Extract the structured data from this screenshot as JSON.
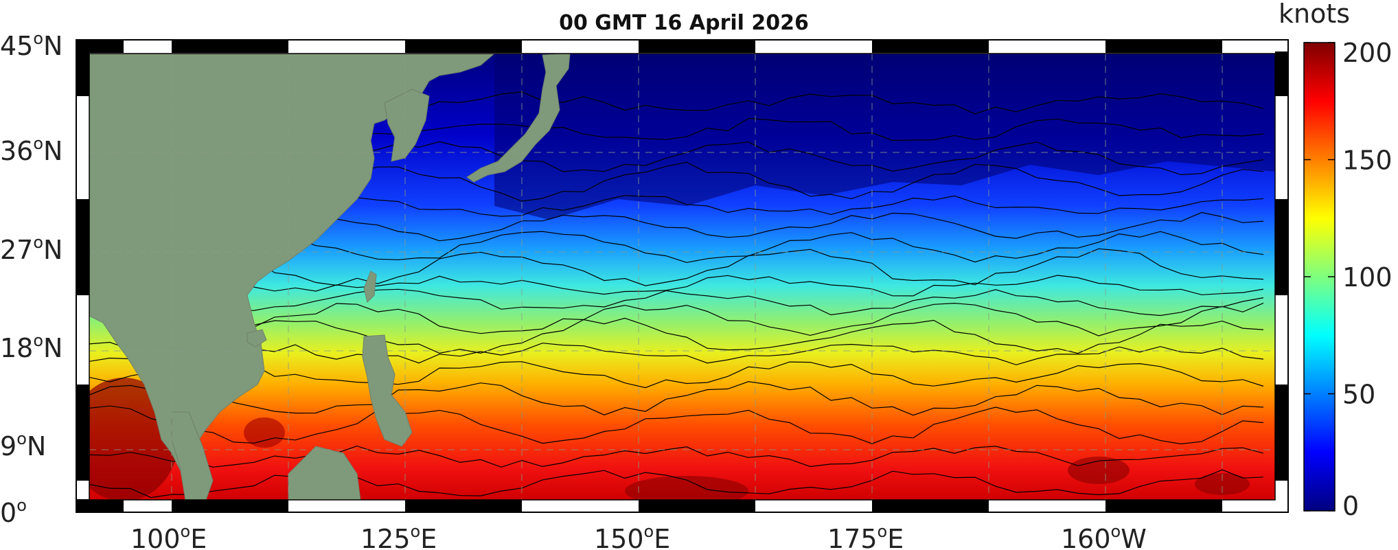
{
  "title": "00 GMT 16 April 2026",
  "map": {
    "lat_labels": [
      "45",
      "36",
      "27",
      "18",
      "9",
      "0"
    ],
    "lat_suffix": [
      "N",
      "N",
      "N",
      "N",
      "N",
      ""
    ],
    "lon_labels": [
      "100",
      "125",
      "150",
      "175",
      "160"
    ],
    "lon_suffix": [
      "E",
      "E",
      "E",
      "E",
      "W"
    ],
    "degree_mark": "o",
    "land_color": "#7f9a7a"
  },
  "colorbar": {
    "unit": "knots",
    "ticks": [
      "200",
      "150",
      "100",
      "50",
      "0"
    ],
    "range": [
      0,
      200
    ],
    "colormap": [
      "#00007f",
      "#0000ff",
      "#007fff",
      "#00ffff",
      "#7fff7f",
      "#ffff00",
      "#ff7f00",
      "#ff0000",
      "#7f0000"
    ]
  }
}
